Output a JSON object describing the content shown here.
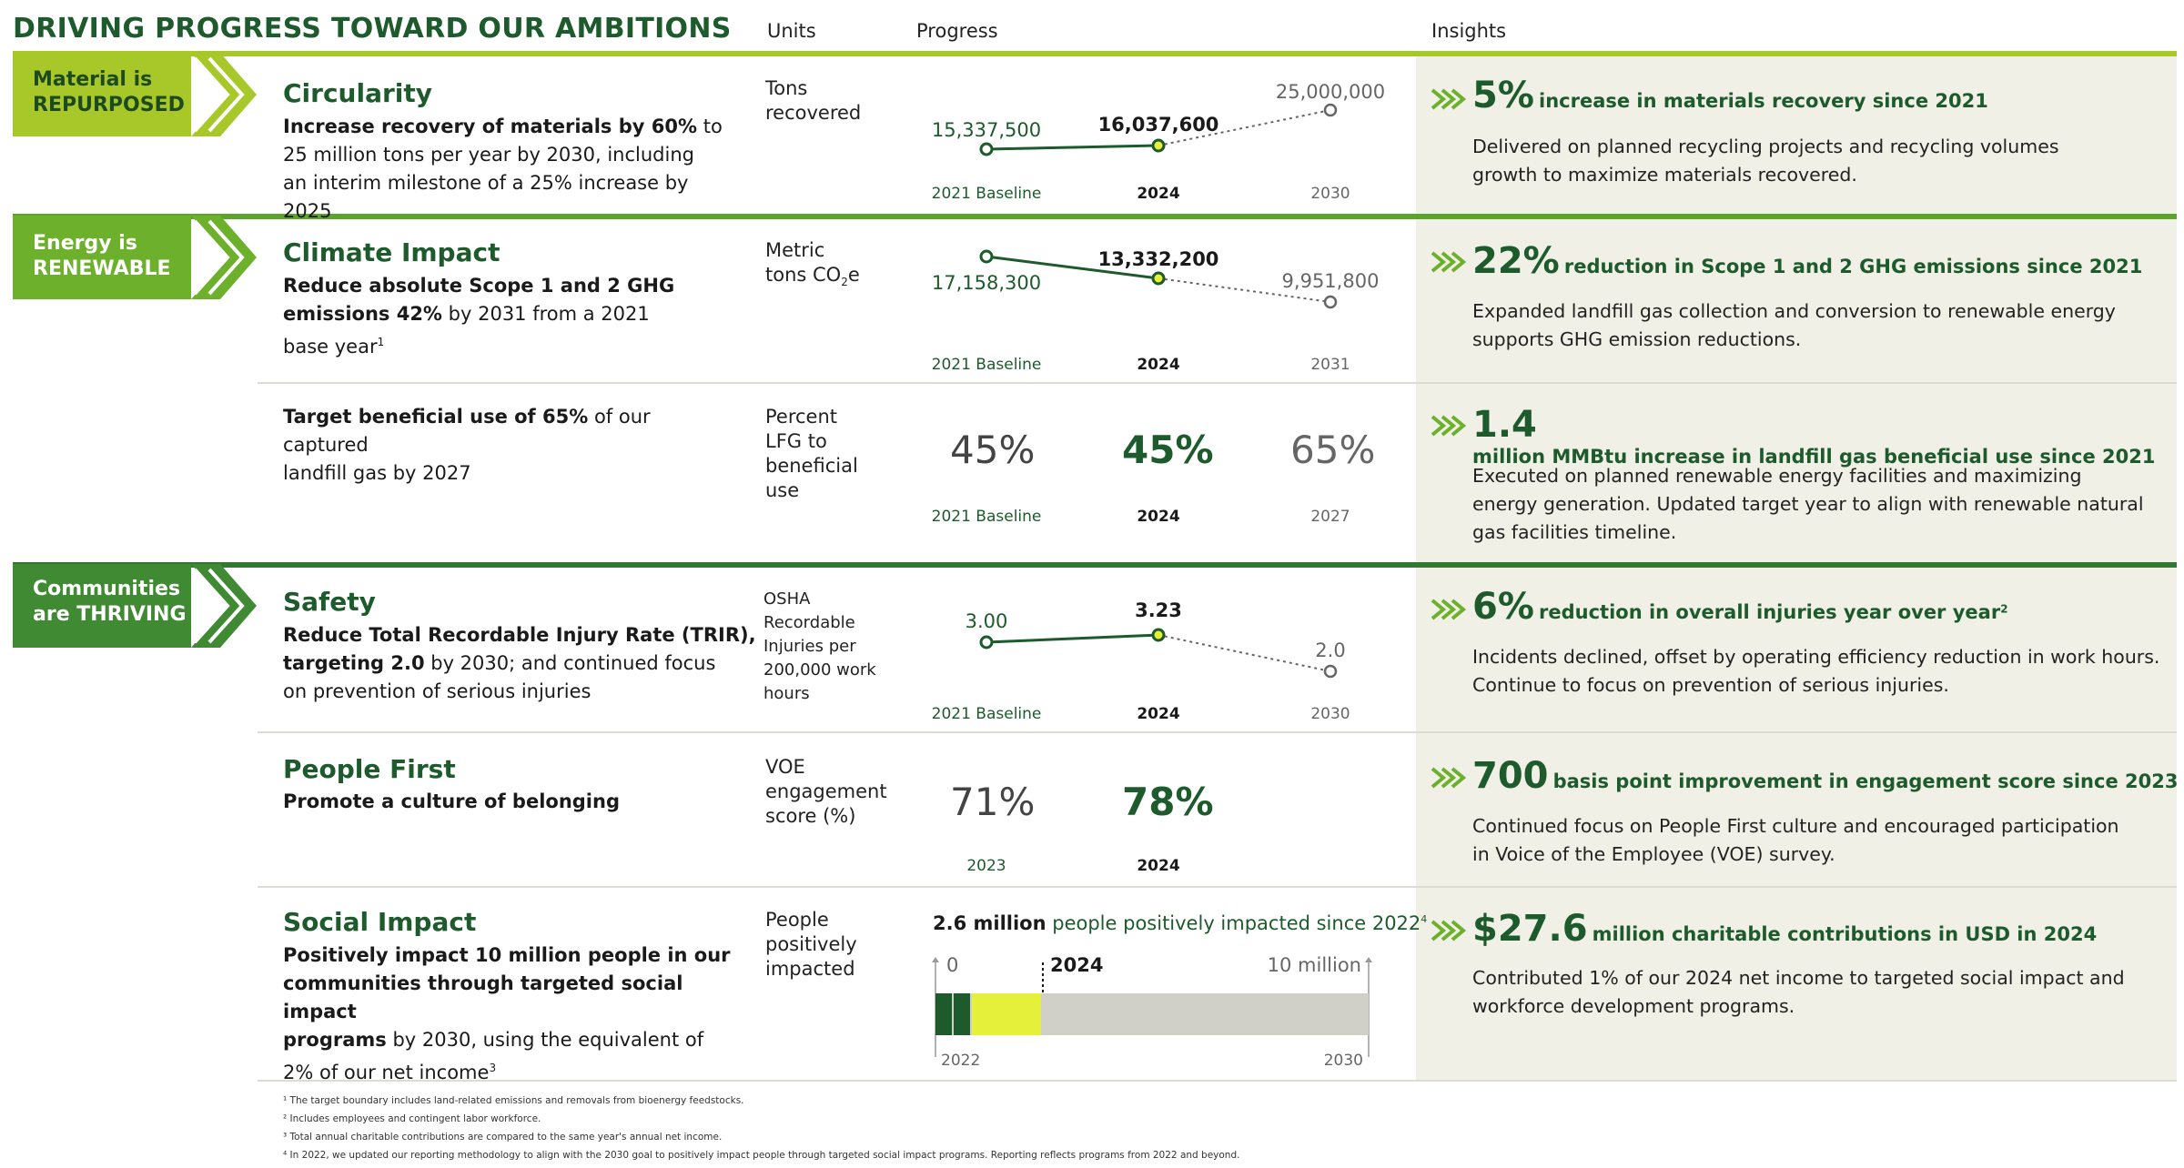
{
  "header": {
    "title": "DRIVING PROGRESS TOWARD OUR AMBITIONS",
    "units_label": "Units",
    "progress_label": "Progress",
    "insights_label": "Insights"
  },
  "colors": {
    "dark_green": "#1d5a2c",
    "mid_green": "#5aa62a",
    "lime": "#a8c82a",
    "yellow_green": "#e4f03a",
    "insights_bg": "#f0f0e6",
    "bar_grey": "#d0d0c8"
  },
  "sections": {
    "material": {
      "banner_line1": "Material is",
      "banner_line2": "REPURPOSED",
      "circularity": {
        "title": "Circularity",
        "desc_bold": "Increase recovery of materials by 60%",
        "desc_rest1": " to",
        "desc_line2": "25 million tons per year by 2030, including",
        "desc_line3": "an interim milestone of a 25% increase by 2025",
        "units_line1": "Tons",
        "units_line2": "recovered",
        "chart": {
          "type": "line",
          "points": [
            {
              "label": "2021 Baseline",
              "value": 15337500,
              "value_text": "15,337,500"
            },
            {
              "label": "2024",
              "value": 16037600,
              "value_text": "16,037,600"
            },
            {
              "label": "2030",
              "value": 25000000,
              "value_text": "25,000,000"
            }
          ]
        },
        "insight_num": "5%",
        "insight_head": "increase in materials recovery since 2021",
        "insight_body1": "Delivered on planned recycling projects and recycling volumes",
        "insight_body2": "growth to maximize materials recovered."
      }
    },
    "energy": {
      "banner_line1": "Energy is",
      "banner_line2": "RENEWABLE",
      "climate": {
        "title": "Climate Impact",
        "desc_line1": "Reduce absolute Scope 1 and 2 GHG",
        "desc_line2_bold": "emissions 42%",
        "desc_line2_rest": " by 2031 from a 2021",
        "desc_line3": "base year",
        "desc_sup": "1",
        "units_line1": "Metric",
        "units_line2": "tons CO",
        "units_sub": "2",
        "units_e": "e",
        "chart": {
          "type": "line",
          "points": [
            {
              "label": "2021 Baseline",
              "value": 17158300,
              "value_text": "17,158,300"
            },
            {
              "label": "2024",
              "value": 13332200,
              "value_text": "13,332,200"
            },
            {
              "label": "2031",
              "value": 9951800,
              "value_text": "9,951,800"
            }
          ]
        },
        "insight_num": "22%",
        "insight_head": "reduction in Scope 1 and 2 GHG emissions since 2021",
        "insight_body1": "Expanded landfill gas collection and conversion to renewable energy",
        "insight_body2": "supports GHG emission reductions."
      },
      "lfg": {
        "desc_bold": "Target beneficial use of 65%",
        "desc_rest": " of our captured",
        "desc_line2": "landfill gas by 2027",
        "units_line1": "Percent",
        "units_line2": "LFG to",
        "units_line3": "beneficial",
        "units_line4": "use",
        "v1": "45%",
        "v2": "45%",
        "v3": "65%",
        "l1": "2021 Baseline",
        "l2": "2024",
        "l3": "2027",
        "insight_num": "1.4",
        "insight_head": "million MMBtu increase in landfill gas beneficial use since 2021",
        "insight_body1": "Executed on planned renewable energy facilities and maximizing",
        "insight_body2": "energy generation. Updated target year to align with renewable natural",
        "insight_body3": "gas facilities timeline."
      }
    },
    "communities": {
      "banner_line1": "Communities",
      "banner_line2": "are THRIVING",
      "safety": {
        "title": "Safety",
        "desc_line1": "Reduce Total Recordable Injury Rate (TRIR),",
        "desc_line2_bold": "targeting 2.0",
        "desc_line2_rest": " by 2030; and continued focus",
        "desc_line3": "on prevention of serious injuries",
        "units_line1": "OSHA",
        "units_line2": "Recordable",
        "units_line3": "Injuries per",
        "units_line4": "200,000 work",
        "units_line5": "hours",
        "chart": {
          "type": "line",
          "points": [
            {
              "label": "2021 Baseline",
              "value": 3.0,
              "value_text": "3.00"
            },
            {
              "label": "2024",
              "value": 3.23,
              "value_text": "3.23"
            },
            {
              "label": "2030",
              "value": 2.0,
              "value_text": "2.0"
            }
          ]
        },
        "insight_num": "6%",
        "insight_head": "reduction in overall injuries year over year",
        "insight_sup": "2",
        "insight_body1": "Incidents declined, offset by operating efficiency reduction in work hours.",
        "insight_body2": "Continue to focus on prevention of serious injuries."
      },
      "people": {
        "title": "People First",
        "desc": "Promote a culture of belonging",
        "units_line1": "VOE",
        "units_line2": "engagement",
        "units_line3": "score (%)",
        "v1": "71%",
        "v2": "78%",
        "l1": "2023",
        "l2": "2024",
        "insight_num": "700",
        "insight_head": "basis point improvement in engagement score since 2023",
        "insight_body1": "Continued focus on People First culture and encouraged participation",
        "insight_body2": "in Voice of the Employee (VOE) survey."
      },
      "social": {
        "title": "Social Impact",
        "desc_line1": "Positively impact 10 million people in our",
        "desc_line2": "communities through targeted social impact",
        "desc_line3_bold": "programs",
        "desc_line3_rest": " by 2030, using the equivalent of",
        "desc_line4": "2% of our net income",
        "desc_sup": "3",
        "units_line1": "People",
        "units_line2": "positively",
        "units_line3": "impacted",
        "bar_head_bold": "2.6 million",
        "bar_head_rest": " people positively impacted since 2022",
        "bar_head_sup": "4",
        "bar_zero": "0",
        "bar_2024": "2024",
        "bar_max": "10 million",
        "bar_start": "2022",
        "bar_end": "2030",
        "insight_num": "$27.6",
        "insight_head": "million charitable contributions in USD in 2024",
        "insight_body1": "Contributed 1% of our 2024 net income to targeted social impact and",
        "insight_body2": "workforce development programs."
      }
    }
  },
  "chart_data": [
    {
      "type": "line",
      "ylabel": "Tons recovered",
      "x": [
        "2021 Baseline",
        "2024",
        "2030"
      ],
      "values": [
        15337500,
        16037600,
        25000000
      ]
    },
    {
      "type": "line",
      "ylabel": "Metric tons CO2e",
      "x": [
        "2021 Baseline",
        "2024",
        "2031"
      ],
      "values": [
        17158300,
        13332200,
        9951800
      ]
    },
    {
      "type": "line",
      "ylabel": "OSHA Recordable Injuries per 200,000 work hours",
      "x": [
        "2021 Baseline",
        "2024",
        "2030"
      ],
      "values": [
        3.0,
        3.23,
        2.0
      ]
    },
    {
      "type": "bar",
      "ylabel": "People positively impacted",
      "value": 2.6,
      "max": 10,
      "unit": "million"
    }
  ],
  "footnotes": {
    "f1": "¹ The target boundary includes land-related emissions and removals from bioenergy feedstocks.",
    "f2": "² Includes employees and contingent labor workforce.",
    "f3": "³ Total annual charitable contributions are compared to the same year's annual net income.",
    "f4": "⁴ In 2022, we updated our reporting methodology to align with the 2030 goal to positively impact people through targeted social impact programs. Reporting reflects programs from 2022 and beyond."
  }
}
